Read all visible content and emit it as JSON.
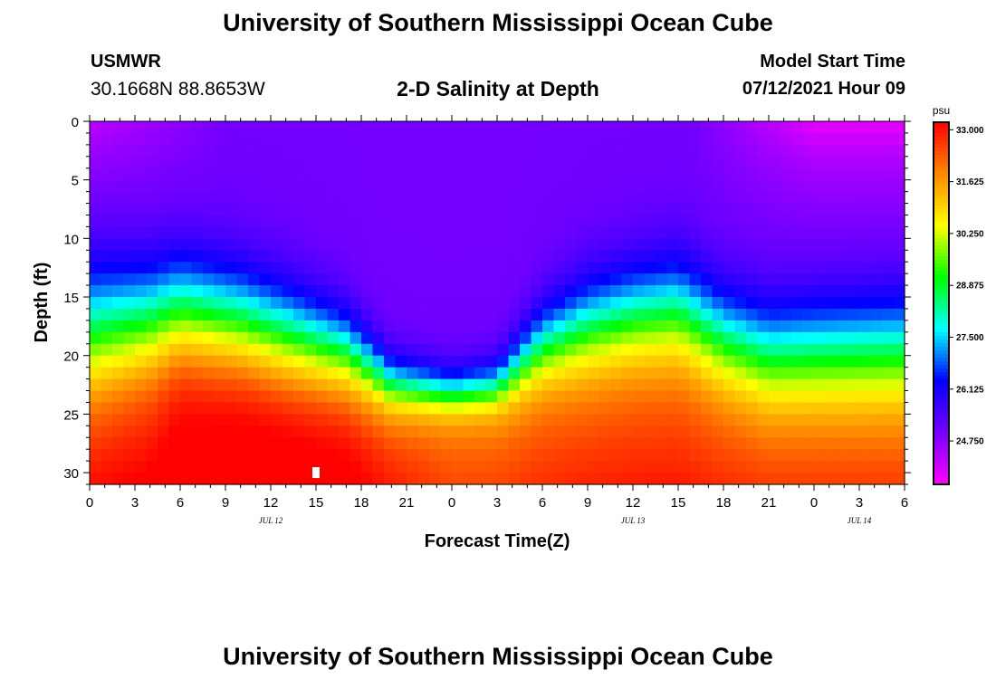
{
  "header": {
    "title": "University of Southern Mississippi Ocean Cube",
    "station": "USMWR",
    "coords": "30.1668N  88.8653W",
    "plot_title": "2-D Salinity at Depth",
    "start_label": "Model Start Time",
    "start_value": "07/12/2021 Hour 09"
  },
  "footer": {
    "title": "University of Southern Mississippi Ocean Cube"
  },
  "colors": {
    "scale": [
      "#ff00ff",
      "#7700ff",
      "#0000ff",
      "#00ffff",
      "#00ff00",
      "#ffff00",
      "#ff8800",
      "#ff0000"
    ]
  },
  "chart_data": {
    "type": "heatmap",
    "title": "2-D Salinity at Depth",
    "xlabel": "Forecast Time(Z)",
    "ylabel": "Depth (ft)",
    "x_hours": [
      0,
      54
    ],
    "x_ticks": [
      {
        "hour": 0,
        "label": "0"
      },
      {
        "hour": 3,
        "label": "3"
      },
      {
        "hour": 6,
        "label": "6"
      },
      {
        "hour": 9,
        "label": "9"
      },
      {
        "hour": 12,
        "label": "12"
      },
      {
        "hour": 15,
        "label": "15"
      },
      {
        "hour": 18,
        "label": "18"
      },
      {
        "hour": 21,
        "label": "21"
      },
      {
        "hour": 24,
        "label": "0"
      },
      {
        "hour": 27,
        "label": "3"
      },
      {
        "hour": 30,
        "label": "6"
      },
      {
        "hour": 33,
        "label": "9"
      },
      {
        "hour": 36,
        "label": "12"
      },
      {
        "hour": 39,
        "label": "15"
      },
      {
        "hour": 42,
        "label": "18"
      },
      {
        "hour": 45,
        "label": "21"
      },
      {
        "hour": 48,
        "label": "0"
      },
      {
        "hour": 51,
        "label": "3"
      },
      {
        "hour": 54,
        "label": "6"
      }
    ],
    "date_labels": [
      {
        "hour": 12,
        "label": "JUL 12"
      },
      {
        "hour": 36,
        "label": "JUL 13"
      },
      {
        "hour": 51,
        "label": "JUL 14"
      }
    ],
    "ylim": [
      0,
      31
    ],
    "y_ticks": [
      0,
      5,
      10,
      15,
      20,
      25,
      30
    ],
    "colorbar": {
      "unit": "psu",
      "min": 23.6,
      "max": 33.2,
      "labels": [
        "33.000",
        "31.625",
        "30.250",
        "28.875",
        "27.500",
        "26.125",
        "24.750"
      ],
      "label_values": [
        33.0,
        31.625,
        30.25,
        28.875,
        27.5,
        26.125,
        24.75
      ]
    },
    "surface_salinity": 25.0,
    "deep_salinity": 32.2,
    "profile_keyframes": [
      {
        "hour": 0,
        "halocline_depth": 17.5,
        "halocline_width": 3.3,
        "bottom_boost": 0.3
      },
      {
        "hour": 4,
        "halocline_depth": 16.5,
        "halocline_width": 2.8,
        "bottom_boost": 0.4
      },
      {
        "hour": 6,
        "halocline_depth": 15.5,
        "halocline_width": 2.6,
        "bottom_boost": 0.7
      },
      {
        "hour": 10,
        "halocline_depth": 16.5,
        "halocline_width": 2.5,
        "bottom_boost": 0.8
      },
      {
        "hour": 13,
        "halocline_depth": 17.8,
        "halocline_width": 2.4,
        "bottom_boost": 0.8
      },
      {
        "hour": 17,
        "halocline_depth": 19.5,
        "halocline_width": 2.0,
        "bottom_boost": 0.7
      },
      {
        "hour": 20,
        "halocline_depth": 22.5,
        "halocline_width": 1.4,
        "bottom_boost": 0.4
      },
      {
        "hour": 24,
        "halocline_depth": 23.3,
        "halocline_width": 1.2,
        "bottom_boost": 0.0
      },
      {
        "hour": 27,
        "halocline_depth": 22.8,
        "halocline_width": 1.3,
        "bottom_boost": 0.0
      },
      {
        "hour": 30,
        "halocline_depth": 19.2,
        "halocline_width": 2.0,
        "bottom_boost": 0.0
      },
      {
        "hour": 33,
        "halocline_depth": 17.5,
        "halocline_width": 2.4,
        "bottom_boost": 0.0
      },
      {
        "hour": 36,
        "halocline_depth": 16.5,
        "halocline_width": 2.5,
        "bottom_boost": 0.0
      },
      {
        "hour": 39,
        "halocline_depth": 16.0,
        "halocline_width": 2.6,
        "bottom_boost": 0.0
      },
      {
        "hour": 42,
        "halocline_depth": 18.5,
        "halocline_width": 2.6,
        "bottom_boost": 0.0
      },
      {
        "hour": 45,
        "halocline_depth": 20.0,
        "halocline_width": 2.7,
        "bottom_boost": 0.0
      },
      {
        "hour": 48,
        "halocline_depth": 19.8,
        "halocline_width": 2.8,
        "bottom_boost": 0.0
      },
      {
        "hour": 54,
        "halocline_depth": 19.5,
        "halocline_width": 2.9,
        "bottom_boost": 0.0
      }
    ],
    "marker": {
      "hour": 15,
      "depth": 30
    }
  }
}
